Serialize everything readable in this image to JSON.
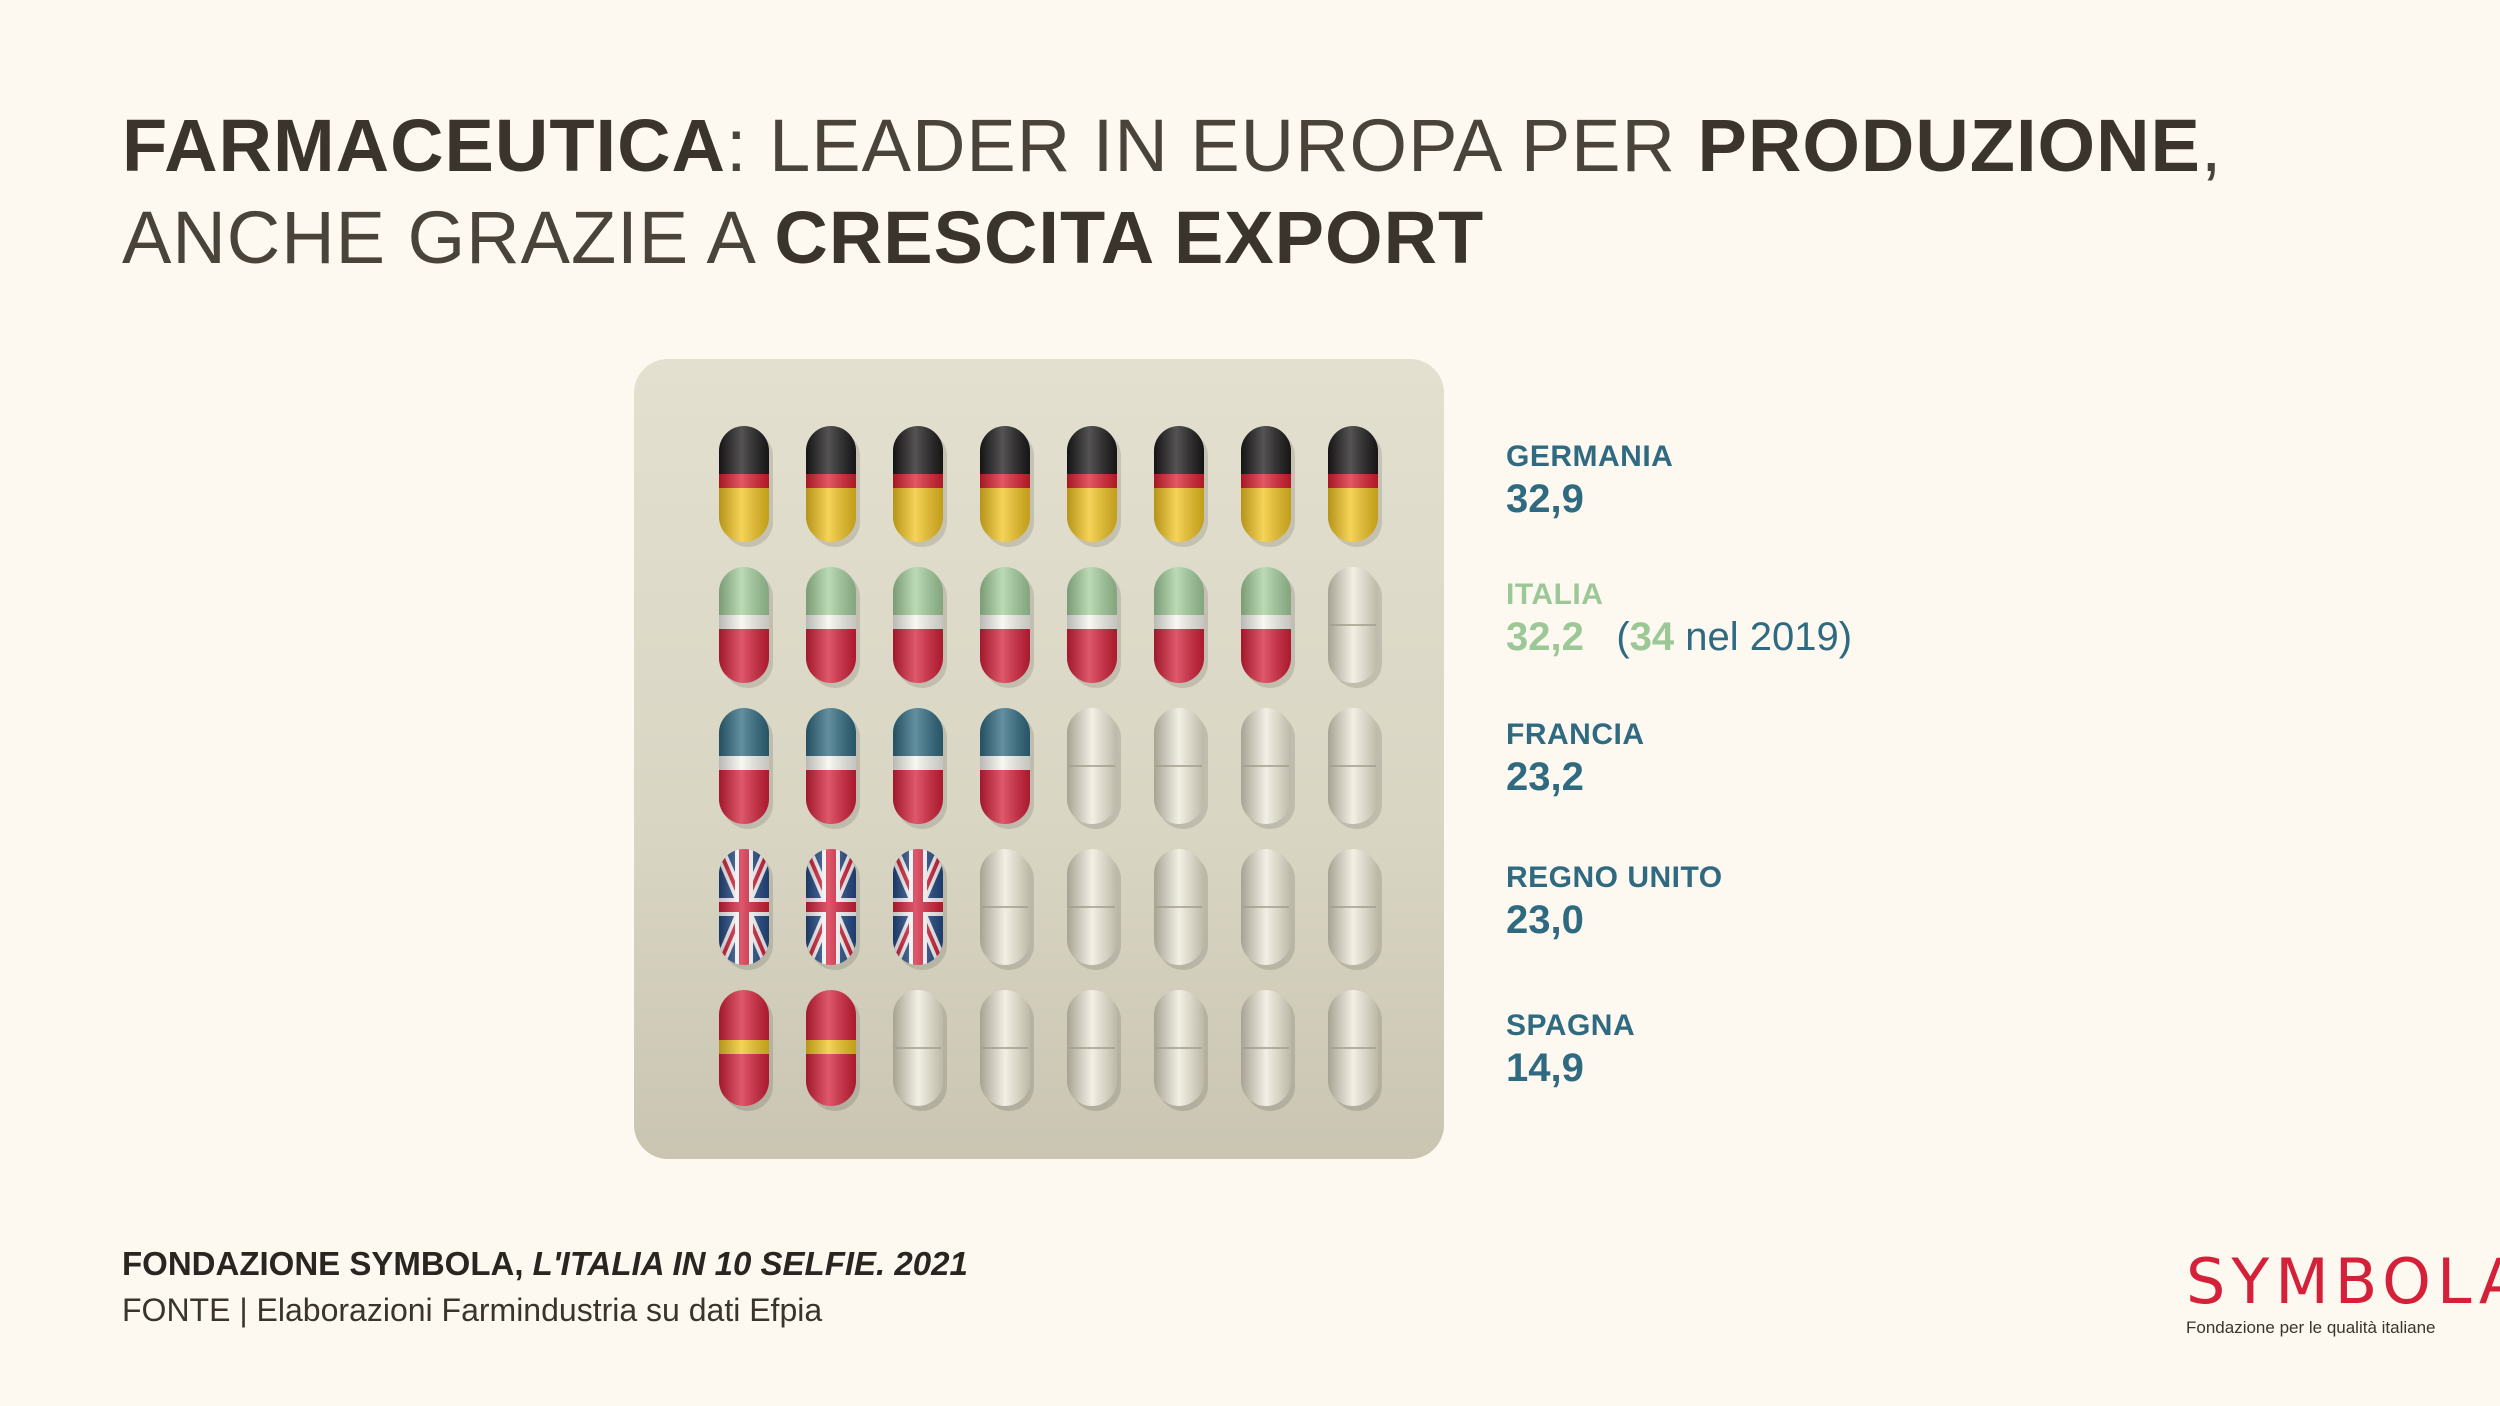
{
  "title": {
    "line1": [
      {
        "text": "FARMACEUTICA",
        "bold": true
      },
      {
        "text": ": LEADER IN EUROPA PER ",
        "bold": false
      },
      {
        "text": "PRODUZIONE",
        "bold": true
      },
      {
        "text": ",",
        "bold": false
      }
    ],
    "line2": [
      {
        "text": "ANCHE GRAZIE A ",
        "bold": false
      },
      {
        "text": "CRESCITA EXPORT",
        "bold": true
      }
    ]
  },
  "chart_data": {
    "type": "pictogram",
    "pills_per_row": 8,
    "series": [
      {
        "name": "GERMANIA",
        "value": 32.9,
        "label": "32,9",
        "flag": "de",
        "filled_pills": 8,
        "color": "#2f6a80"
      },
      {
        "name": "ITALIA",
        "value": 32.2,
        "label": "32,2",
        "flag": "it",
        "filled_pills": 7,
        "color": "#9cc796",
        "note": {
          "open": "(",
          "value": "34",
          "text": " nel 2019)"
        }
      },
      {
        "name": "FRANCIA",
        "value": 23.2,
        "label": "23,2",
        "flag": "fr",
        "filled_pills": 4,
        "color": "#2f6a80"
      },
      {
        "name": "REGNO UNITO",
        "value": 23.0,
        "label": "23,0",
        "flag": "uk",
        "filled_pills": 3,
        "color": "#2f6a80"
      },
      {
        "name": "SPAGNA",
        "value": 14.9,
        "label": "14,9",
        "flag": "es",
        "filled_pills": 2,
        "color": "#2f6a80"
      }
    ]
  },
  "footer": {
    "source_bold": "FONDAZIONE SYMBOLA, ",
    "source_italic": "L'ITALIA IN 10 SELFIE. 2021",
    "fonte": "FONTE | Elaborazioni Farmindustria su dati Efpia"
  },
  "logo": {
    "word": "SYMBOLA",
    "tagline": "Fondazione per le qualità italiane"
  },
  "colors": {
    "background": "#fdf8f0",
    "text_dark": "#3b342c",
    "teal": "#2f6a80",
    "italy_green": "#9cc796",
    "red": "#d5203a"
  }
}
